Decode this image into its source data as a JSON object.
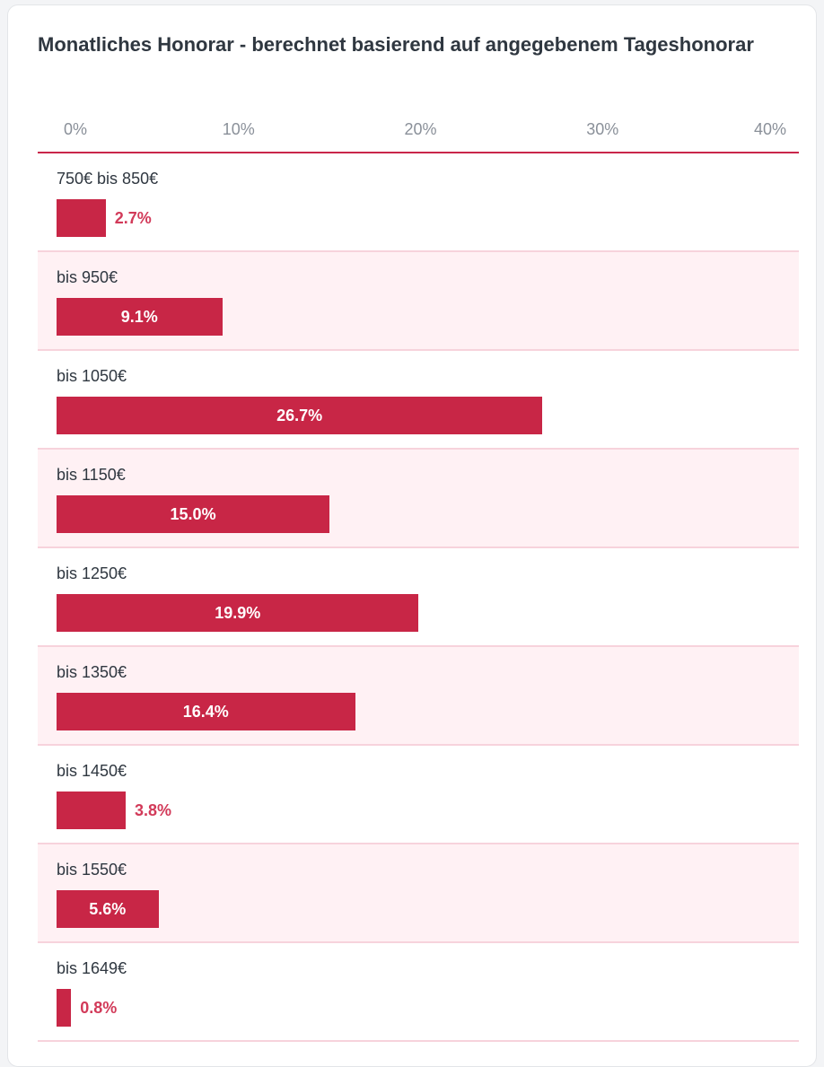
{
  "chart_data": {
    "type": "bar",
    "orientation": "horizontal",
    "title": "Monatliches Honorar - berechnet basierend auf angegebenem Tageshonorar",
    "xlim": [
      0,
      40
    ],
    "ticks": [
      "0%",
      "10%",
      "20%",
      "30%",
      "40%"
    ],
    "categories": [
      "750€ bis 850€",
      "bis 950€",
      "bis 1050€",
      "bis 1150€",
      "bis 1250€",
      "bis 1350€",
      "bis 1450€",
      "bis 1550€",
      "bis 1649€"
    ],
    "values": [
      2.7,
      9.1,
      26.7,
      15.0,
      19.9,
      16.4,
      3.8,
      5.6,
      0.8
    ],
    "value_labels": [
      "2.7%",
      "9.1%",
      "26.7%",
      "15.0%",
      "19.9%",
      "16.4%",
      "3.8%",
      "5.6%",
      "0.8%"
    ],
    "bar_color": "#c82646",
    "alt_row_color": "#fff1f4",
    "grid": false
  }
}
